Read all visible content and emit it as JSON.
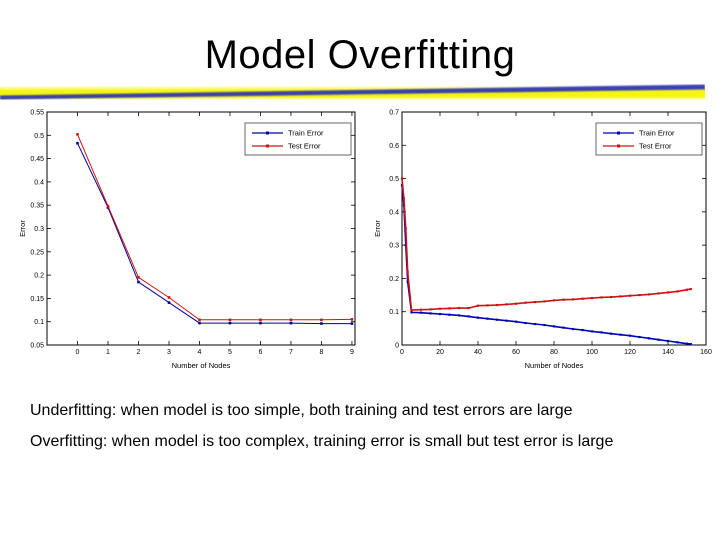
{
  "slide": {
    "title": "Model Overfitting",
    "body_lines": [
      "Underfitting: when model is too simple, both training and test errors are large",
      "Overfitting: when model is too complex, training error is small but test error is large"
    ]
  },
  "accent_colors": {
    "bar_yellow": "#f4f40e",
    "bar_blue": "#2b31b4",
    "train_blue": "#00009e",
    "test_red": "#cc1414"
  },
  "chart_data": [
    {
      "type": "line",
      "title": "",
      "xlabel": "Number of Nodes",
      "ylabel": "Error",
      "xlim": [
        -1,
        9.1
      ],
      "ylim": [
        0.05,
        0.55
      ],
      "xticks": [
        0,
        1,
        2,
        3,
        4,
        5,
        6,
        7,
        8,
        9
      ],
      "yticks": [
        0.05,
        0.1,
        0.15,
        0.2,
        0.25,
        0.3,
        0.35,
        0.4,
        0.45,
        0.5,
        0.55
      ],
      "grid": false,
      "legend_position": "top-right",
      "legend": [
        "Train Error",
        "Test Error"
      ],
      "series": [
        {
          "name": "Train Error",
          "color": "#00009e",
          "marker": "square",
          "x": [
            0,
            1,
            2,
            3,
            4,
            5,
            6,
            7,
            8,
            9
          ],
          "y": [
            0.483,
            0.345,
            0.185,
            0.141,
            0.097,
            0.097,
            0.097,
            0.097,
            0.096,
            0.096
          ]
        },
        {
          "name": "Test Error",
          "color": "#cc1414",
          "marker": "square",
          "x": [
            0,
            1,
            2,
            3,
            4,
            5,
            6,
            7,
            8,
            9
          ],
          "y": [
            0.502,
            0.348,
            0.195,
            0.152,
            0.104,
            0.104,
            0.104,
            0.104,
            0.104,
            0.105
          ]
        }
      ]
    },
    {
      "type": "line",
      "title": "",
      "xlabel": "Number of Nodes",
      "ylabel": "Error",
      "xlim": [
        0,
        160
      ],
      "ylim": [
        0,
        0.7
      ],
      "xticks": [
        0,
        20,
        40,
        60,
        80,
        100,
        120,
        140,
        160
      ],
      "yticks": [
        0,
        0.1,
        0.2,
        0.3,
        0.4,
        0.5,
        0.6,
        0.7
      ],
      "grid": false,
      "legend_position": "top-right",
      "legend": [
        "Train Error",
        "Test Error"
      ],
      "series": [
        {
          "name": "Train Error",
          "color": "#0000bb",
          "marker": "square",
          "x": [
            0,
            1,
            2,
            3,
            5,
            10,
            15,
            20,
            25,
            30,
            35,
            40,
            45,
            50,
            55,
            60,
            65,
            70,
            75,
            80,
            85,
            90,
            95,
            100,
            105,
            110,
            115,
            120,
            125,
            130,
            135,
            140,
            145,
            150,
            152
          ],
          "y": [
            0.48,
            0.42,
            0.3,
            0.19,
            0.098,
            0.097,
            0.095,
            0.093,
            0.091,
            0.089,
            0.086,
            0.082,
            0.079,
            0.076,
            0.073,
            0.07,
            0.066,
            0.063,
            0.06,
            0.056,
            0.052,
            0.048,
            0.045,
            0.041,
            0.038,
            0.034,
            0.031,
            0.028,
            0.024,
            0.02,
            0.016,
            0.012,
            0.008,
            0.004,
            0.003
          ]
        },
        {
          "name": "Test Error",
          "color": "#cc1414",
          "marker": "square",
          "x": [
            0,
            1,
            2,
            3,
            5,
            10,
            15,
            20,
            25,
            30,
            35,
            40,
            45,
            50,
            55,
            60,
            65,
            70,
            75,
            80,
            85,
            90,
            95,
            100,
            105,
            110,
            115,
            120,
            125,
            130,
            135,
            140,
            145,
            150,
            152
          ],
          "y": [
            0.5,
            0.44,
            0.35,
            0.22,
            0.105,
            0.106,
            0.107,
            0.109,
            0.11,
            0.111,
            0.111,
            0.118,
            0.119,
            0.12,
            0.122,
            0.124,
            0.127,
            0.129,
            0.131,
            0.134,
            0.136,
            0.137,
            0.139,
            0.141,
            0.143,
            0.144,
            0.146,
            0.148,
            0.15,
            0.152,
            0.155,
            0.158,
            0.161,
            0.166,
            0.168
          ]
        }
      ]
    }
  ]
}
